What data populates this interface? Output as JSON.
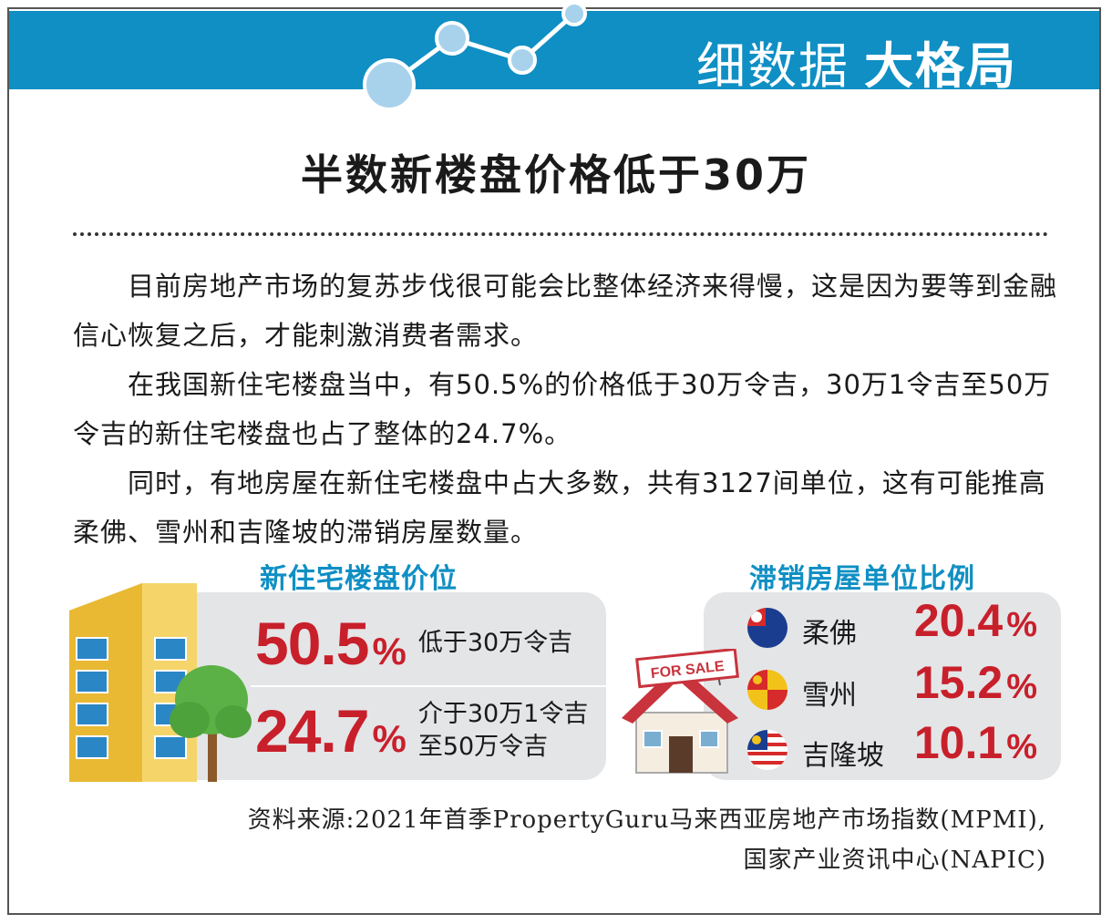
{
  "header": {
    "title_part1": "细数据",
    "title_part2": "大格局"
  },
  "headline": "半数新楼盘价格低于30万",
  "paragraphs": [
    "目前房地产市场的复苏步伐很可能会比整体经济来得慢，这是因为要等到金融信心恢复之后，才能刺激消费者需求。",
    "在我国新住宅楼盘当中，有50.5%的价格低于30万令吉，30万1令吉至50万令吉的新住宅楼盘也占了整体的24.7%。",
    "同时，有地房屋在新住宅楼盘中占大多数，共有3127间单位，这有可能推高柔佛、雪州和吉隆坡的滞销房屋数量。"
  ],
  "price_panel": {
    "title": "新住宅楼盘价位",
    "rows": [
      {
        "value": "50.5",
        "unit": "%",
        "desc_line1": "低于30万令吉",
        "desc_line2": ""
      },
      {
        "value": "24.7",
        "unit": "%",
        "desc_line1": "介于30万1令吉",
        "desc_line2": "至50万令吉"
      }
    ]
  },
  "unsold_panel": {
    "title": "滞销房屋单位比例",
    "sign_text": "FOR SALE",
    "rows": [
      {
        "state": "柔佛",
        "value": "20.4",
        "unit": "%",
        "flag": "johor-flag-icon"
      },
      {
        "state": "雪州",
        "value": "15.2",
        "unit": "%",
        "flag": "selangor-flag-icon"
      },
      {
        "state": "吉隆坡",
        "value": "10.1",
        "unit": "%",
        "flag": "kuala-lumpur-flag-icon"
      }
    ]
  },
  "source": {
    "line1": "资料来源:2021年首季PropertyGuru马来西亚房地产市场指数(MPMI),",
    "line2": "国家产业资讯中心(NAPIC)"
  },
  "colors": {
    "header_blue": "#0f8fc4",
    "value_red": "#c8202b",
    "panel_gray": "#e4e5e7"
  }
}
